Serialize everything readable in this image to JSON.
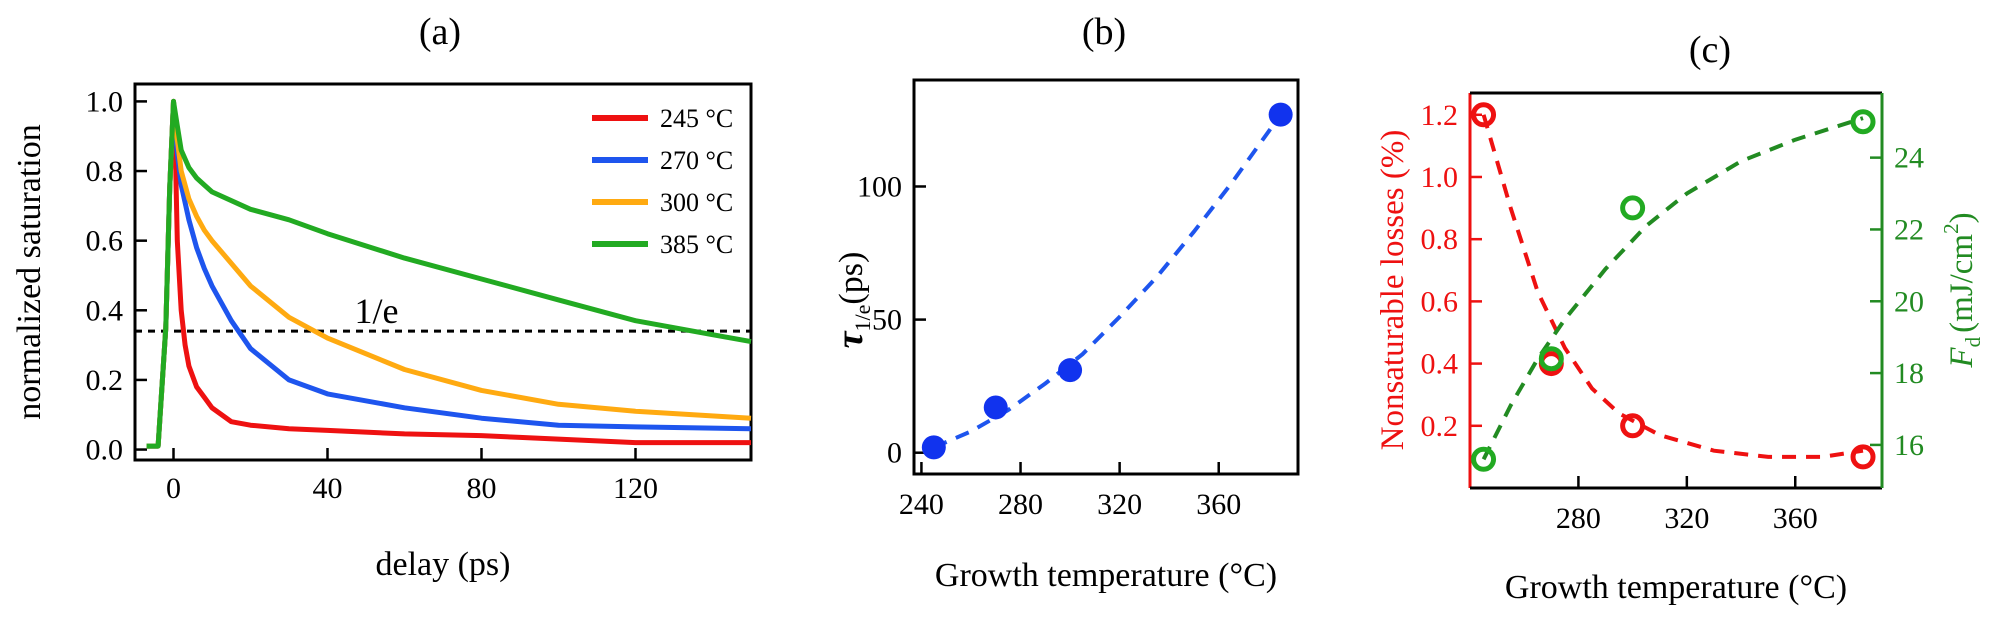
{
  "colors": {
    "red": "#ee1111",
    "blue": "#1e55ee",
    "orange": "#ffaa11",
    "green": "#22aa22",
    "axis_left_c": "#ee1111",
    "axis_right_c": "#228b22",
    "dots_b": "#1133ee"
  },
  "chart_data": [
    {
      "panel_label": "(a)",
      "type": "line",
      "xlabel": "delay (ps)",
      "ylabel": "normalized saturation",
      "xlim": [
        -10,
        150
      ],
      "ylim": [
        -0.03,
        1.05
      ],
      "xticks": [
        0,
        40,
        80,
        120
      ],
      "xtick_labels": [
        "0",
        "40",
        "80",
        "120"
      ],
      "yticks": [
        0.0,
        0.2,
        0.4,
        0.6,
        0.8,
        1.0
      ],
      "ytick_labels": [
        "0.0",
        "0.2",
        "0.4",
        "0.6",
        "0.8",
        "1.0"
      ],
      "hline": {
        "y": 0.34,
        "label": "1/e"
      },
      "legend_position": "top-right",
      "series": [
        {
          "name": "245 °C",
          "color_key": "red",
          "x": [
            -7,
            -4,
            -2,
            -1,
            0,
            0.5,
            1,
            2,
            3,
            4,
            6,
            8,
            10,
            15,
            20,
            30,
            40,
            60,
            80,
            90,
            100,
            120,
            150
          ],
          "y": [
            0.01,
            0.01,
            0.35,
            0.75,
            1.0,
            0.85,
            0.6,
            0.4,
            0.3,
            0.24,
            0.18,
            0.15,
            0.12,
            0.08,
            0.07,
            0.06,
            0.055,
            0.045,
            0.04,
            0.035,
            0.03,
            0.02,
            0.02
          ]
        },
        {
          "name": "270 °C",
          "color_key": "blue",
          "x": [
            -7,
            -4,
            -2,
            -1,
            0,
            0.5,
            1,
            2,
            4,
            6,
            8,
            10,
            15,
            20,
            30,
            40,
            60,
            80,
            100,
            120,
            150
          ],
          "y": [
            0.01,
            0.01,
            0.35,
            0.75,
            1.0,
            0.92,
            0.85,
            0.76,
            0.66,
            0.58,
            0.52,
            0.47,
            0.37,
            0.29,
            0.2,
            0.16,
            0.12,
            0.09,
            0.07,
            0.065,
            0.06
          ]
        },
        {
          "name": "300 °C",
          "color_key": "orange",
          "x": [
            -7,
            -4,
            -2,
            -1,
            0,
            1,
            2,
            4,
            6,
            8,
            10,
            20,
            30,
            40,
            60,
            80,
            100,
            120,
            150
          ],
          "y": [
            0.01,
            0.01,
            0.35,
            0.75,
            1.0,
            0.89,
            0.8,
            0.72,
            0.67,
            0.63,
            0.6,
            0.47,
            0.38,
            0.32,
            0.23,
            0.17,
            0.13,
            0.11,
            0.09
          ]
        },
        {
          "name": "385 °C",
          "color_key": "green",
          "x": [
            -7,
            -4,
            -2,
            -1,
            0,
            1,
            2,
            4,
            6,
            8,
            10,
            20,
            30,
            40,
            60,
            80,
            100,
            120,
            140,
            150
          ],
          "y": [
            0.01,
            0.01,
            0.35,
            0.75,
            1.0,
            0.93,
            0.86,
            0.81,
            0.78,
            0.76,
            0.74,
            0.69,
            0.66,
            0.62,
            0.55,
            0.49,
            0.43,
            0.37,
            0.33,
            0.31
          ]
        }
      ]
    },
    {
      "panel_label": "(b)",
      "type": "scatter",
      "xlabel": "Growth temperature (°C)",
      "ylabel_symbol": "τ",
      "ylabel_sub": "1/e",
      "ylabel_unit": "(ps)",
      "xlim": [
        237,
        392
      ],
      "ylim": [
        -8,
        140
      ],
      "xticks": [
        240,
        280,
        320,
        360
      ],
      "xtick_labels": [
        "240",
        "280",
        "320",
        "360"
      ],
      "yticks": [
        0,
        50,
        100
      ],
      "ytick_labels": [
        "0",
        "50",
        "100"
      ],
      "points": {
        "x": [
          245,
          270,
          300,
          385
        ],
        "y": [
          2,
          17,
          31,
          127
        ]
      },
      "fit": {
        "x": [
          245,
          260,
          275,
          290,
          305,
          320,
          335,
          350,
          365,
          385
        ],
        "y": [
          2,
          8,
          16,
          26,
          37,
          51,
          66,
          83,
          101,
          127
        ]
      }
    },
    {
      "panel_label": "(c)",
      "type": "scatter",
      "xlabel": "Growth temperature (°C)",
      "ylabel_left": "Nonsaturable losses (%)",
      "ylabel_right_symbol": "F",
      "ylabel_right_sub": "d",
      "ylabel_right_unit": "(mJ/cm",
      "ylabel_right_sup": "2",
      "ylabel_right_close": ")",
      "xlim": [
        240,
        392
      ],
      "ylim_left": [
        0.0,
        1.27
      ],
      "ylim_right": [
        14.8,
        25.8
      ],
      "xticks": [
        280,
        320,
        360
      ],
      "xtick_labels": [
        "280",
        "320",
        "360"
      ],
      "yticks_left": [
        0.2,
        0.4,
        0.6,
        0.8,
        1.0,
        1.2
      ],
      "ytick_labels_left": [
        "0.2",
        "0.4",
        "0.6",
        "0.8",
        "1.0",
        "1.2"
      ],
      "yticks_right": [
        16,
        18,
        20,
        22,
        24
      ],
      "ytick_labels_right": [
        "16",
        "18",
        "20",
        "22",
        "24"
      ],
      "losses": {
        "x": [
          245,
          270,
          300,
          385
        ],
        "y": [
          1.2,
          0.4,
          0.2,
          0.1
        ]
      },
      "losses_fit": {
        "x": [
          245,
          255,
          265,
          275,
          285,
          295,
          310,
          330,
          350,
          370,
          385
        ],
        "y": [
          1.2,
          0.9,
          0.63,
          0.45,
          0.32,
          0.24,
          0.17,
          0.12,
          0.1,
          0.1,
          0.12
        ]
      },
      "fluence": {
        "x": [
          245,
          270,
          300,
          385
        ],
        "y": [
          15.6,
          18.4,
          22.6,
          25.0
        ]
      },
      "fluence_fit": {
        "x": [
          245,
          255,
          265,
          275,
          290,
          305,
          320,
          340,
          360,
          385
        ],
        "y": [
          15.6,
          17.1,
          18.4,
          19.5,
          20.9,
          22.1,
          23.0,
          23.9,
          24.5,
          25.1
        ]
      }
    }
  ]
}
